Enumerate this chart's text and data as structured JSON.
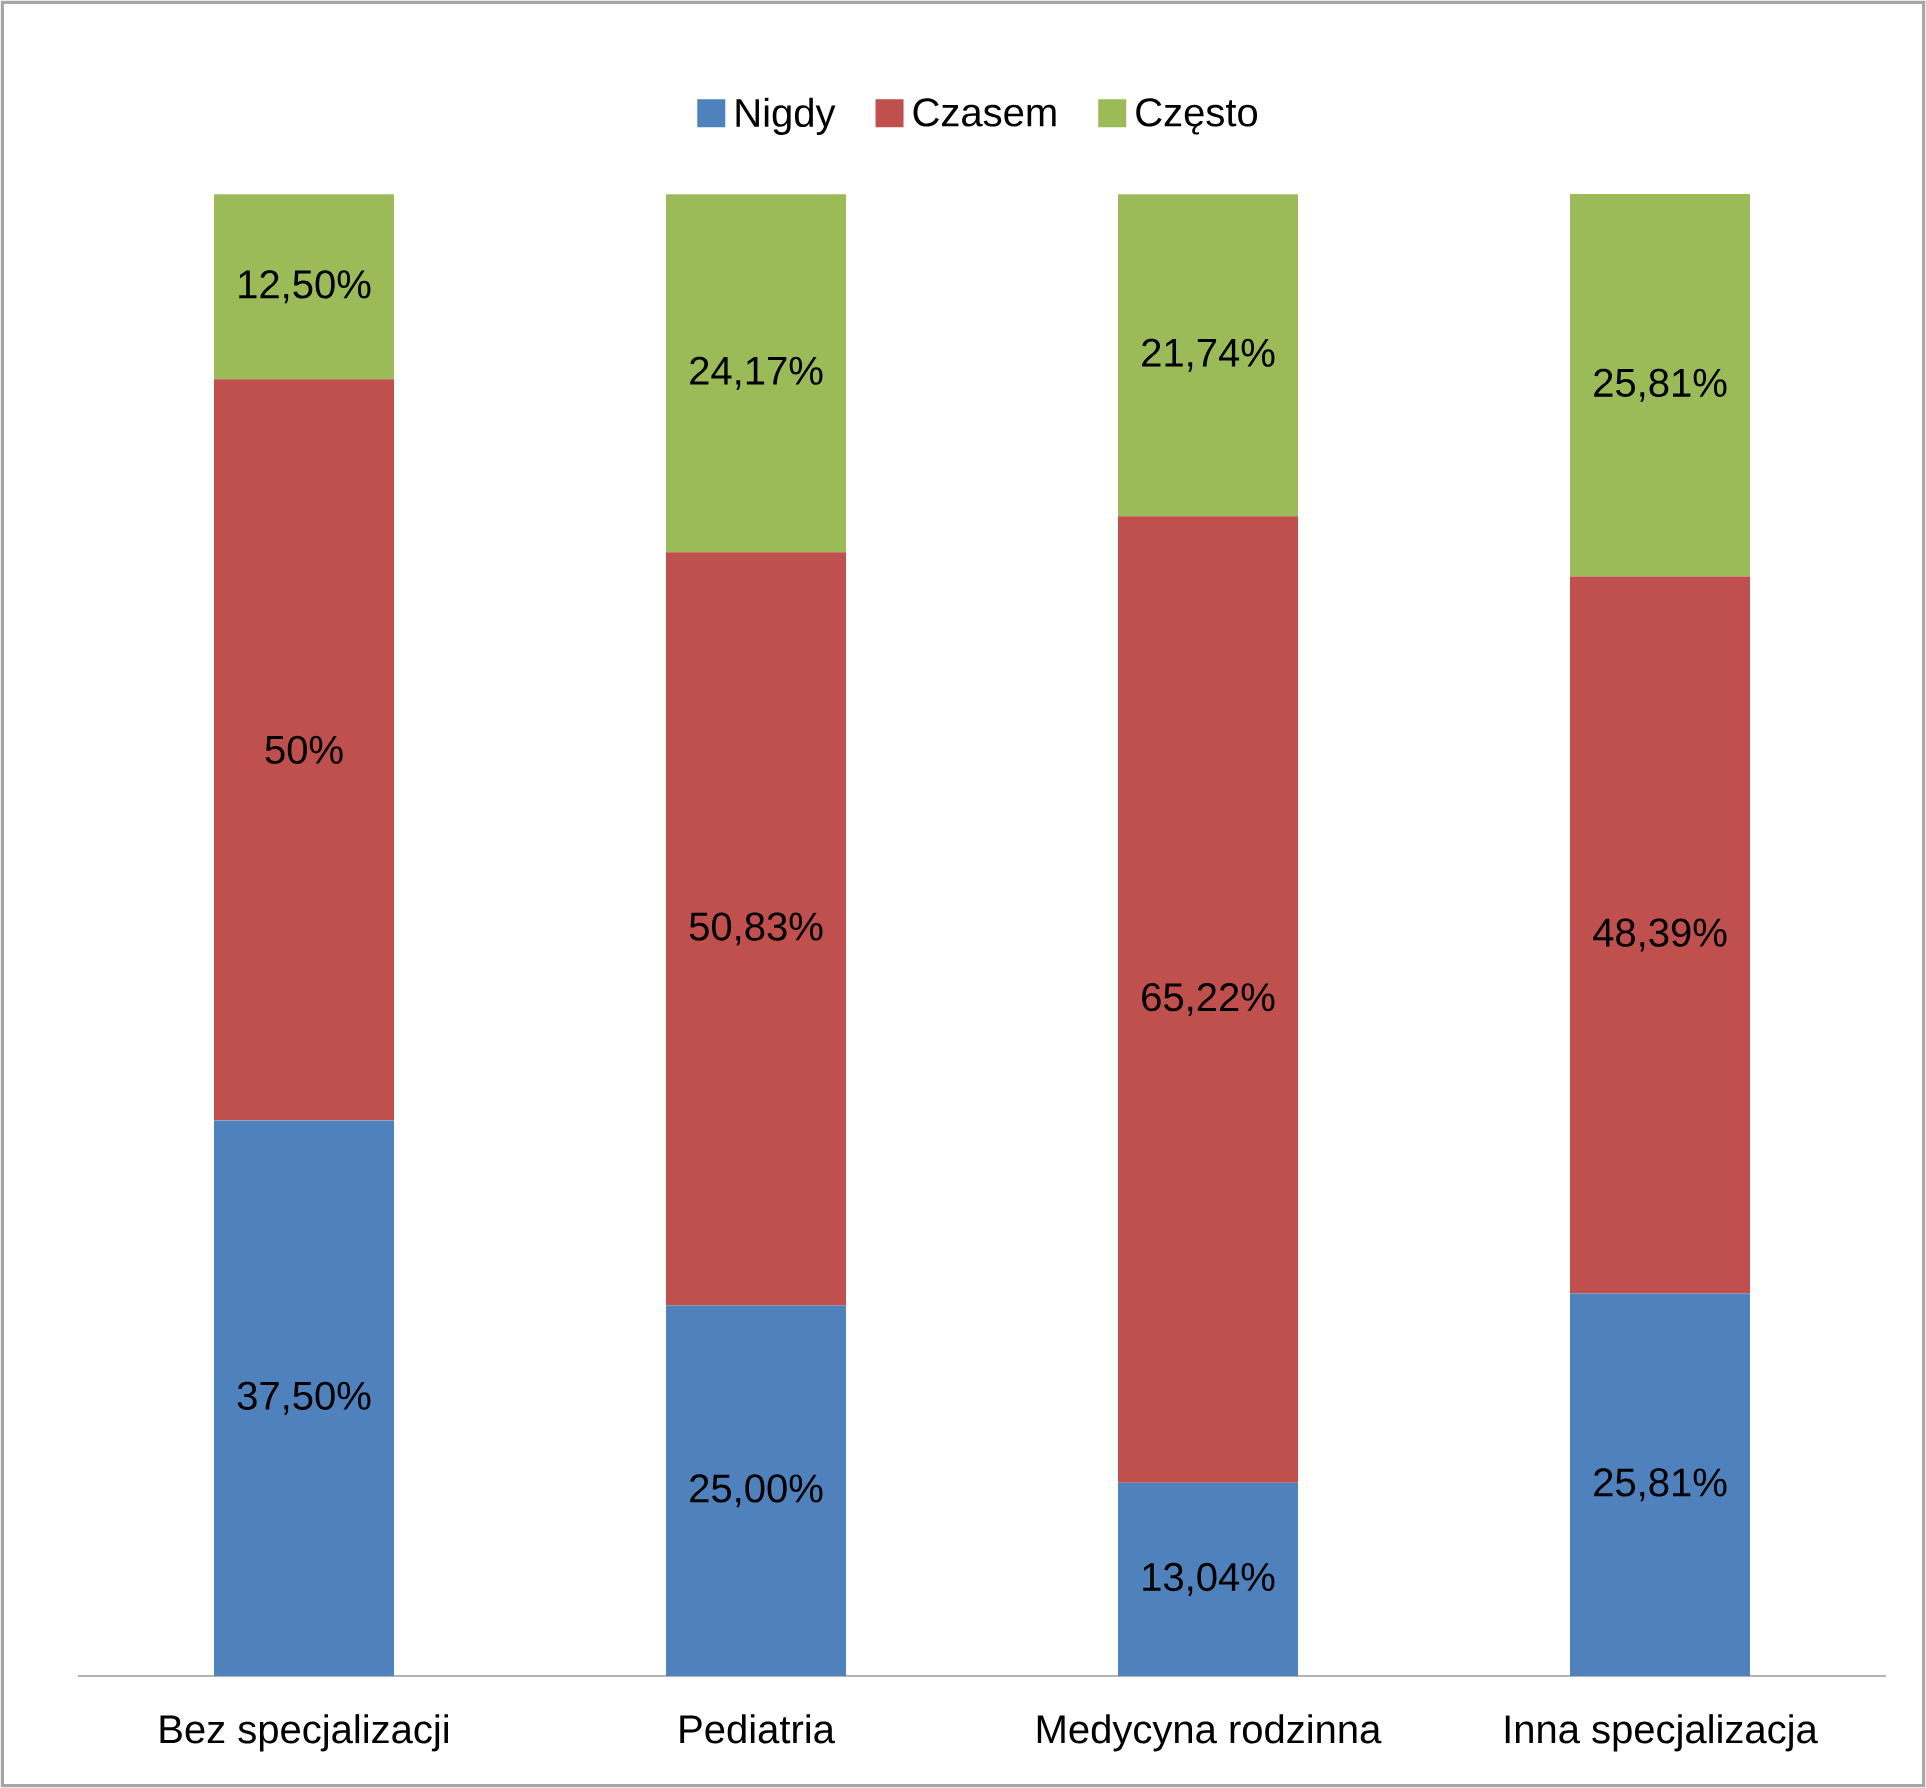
{
  "chart_data": {
    "type": "bar",
    "stacked": true,
    "legend": "top",
    "tick_labels": "x",
    "categories": [
      "Bez specjalizacji",
      "Pediatria",
      "Medycyna rodzinna",
      "Inna specjalizacja"
    ],
    "series": [
      {
        "name": "Nigdy",
        "color": "#4f81bd",
        "values": [
          37.5,
          25.0,
          13.04,
          25.81
        ],
        "value_labels": [
          "37,50%",
          "25,00%",
          "13,04%",
          "25,81%"
        ]
      },
      {
        "name": "Czasem",
        "color": "#c0504d",
        "values": [
          50,
          50.83,
          65.22,
          48.39
        ],
        "value_labels": [
          "50%",
          "50,83%",
          "65,22%",
          "48,39%"
        ]
      },
      {
        "name": "Często",
        "color": "#9bbb59",
        "values": [
          12.5,
          24.17,
          21.74,
          25.81
        ],
        "value_labels": [
          "12,50%",
          "24,17%",
          "21,74%",
          "25,81%"
        ]
      }
    ]
  }
}
